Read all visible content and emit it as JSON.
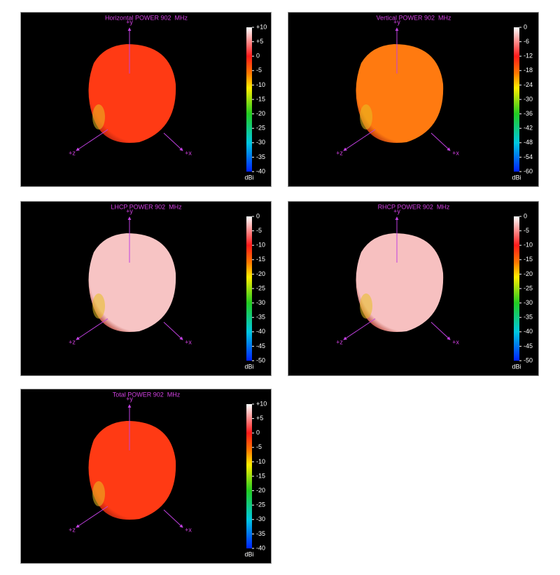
{
  "chart_data": [
    {
      "type": "pattern3d",
      "title": "Horizontal POWER 902  MHz",
      "axis_labels": {
        "y": "+y",
        "z": "+z",
        "x": "+x"
      },
      "color": "#ff3a14",
      "colorbar_label": "dBi",
      "clim": [
        -40,
        10
      ],
      "cticks": [
        {
          "value": 10,
          "label": "+10"
        },
        {
          "value": 5,
          "label": "+5"
        },
        0,
        -5,
        -10,
        -15,
        -20,
        -25,
        -30,
        -35,
        -40
      ]
    },
    {
      "type": "pattern3d",
      "title": "Vertical POWER 902  MHz",
      "axis_labels": {
        "y": "+y",
        "z": "+z",
        "x": "+x"
      },
      "color": "#ff7a10",
      "colorbar_label": "dBi",
      "clim": [
        -60,
        0
      ],
      "cticks": [
        0,
        -6,
        -12,
        -18,
        -24,
        -30,
        -36,
        -42,
        -48,
        -54,
        -60
      ]
    },
    {
      "type": "pattern3d",
      "title": "LHCP POWER 902  MHz",
      "axis_labels": {
        "y": "+y",
        "z": "+z",
        "x": "+x"
      },
      "color": "#f7c4c4",
      "colorbar_label": "dBi",
      "clim": [
        -50,
        0
      ],
      "cticks": [
        0,
        -5,
        -10,
        -15,
        -20,
        -25,
        -30,
        -35,
        -40,
        -45,
        -50
      ]
    },
    {
      "type": "pattern3d",
      "title": "RHCP POWER 902  MHz",
      "axis_labels": {
        "y": "+y",
        "z": "+z",
        "x": "+x"
      },
      "color": "#f7c0c0",
      "colorbar_label": "dBi",
      "clim": [
        -50,
        0
      ],
      "cticks": [
        0,
        -5,
        -10,
        -15,
        -20,
        -25,
        -30,
        -35,
        -40,
        -45,
        -50
      ]
    },
    {
      "type": "pattern3d",
      "title": "Total POWER 902  MHz",
      "axis_labels": {
        "y": "+y",
        "z": "+z",
        "x": "+x"
      },
      "color": "#ff3a14",
      "colorbar_label": "dBi",
      "clim": [
        -40,
        10
      ],
      "cticks": [
        {
          "value": 10,
          "label": "+10"
        },
        {
          "value": 5,
          "label": "+5"
        },
        0,
        -5,
        -10,
        -15,
        -20,
        -25,
        -30,
        -35,
        -40
      ]
    }
  ]
}
